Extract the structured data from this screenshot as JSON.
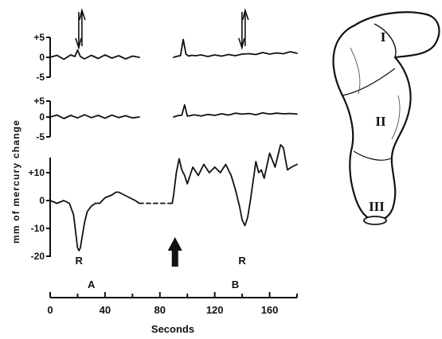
{
  "chart_data": [
    {
      "type": "line",
      "panel": "top trace",
      "yticks": [
        "+5",
        "0",
        "-5"
      ],
      "ylim": [
        -5,
        5
      ],
      "series": [
        {
          "segment": "A",
          "x": [
            0,
            5,
            10,
            15,
            18,
            20,
            22,
            25,
            30,
            35,
            40,
            45,
            50,
            55,
            60,
            65
          ],
          "y": [
            0,
            0.5,
            -0.5,
            0.6,
            0.2,
            1.8,
            0.2,
            -0.4,
            0.5,
            -0.3,
            0.6,
            -0.2,
            0.4,
            -0.4,
            0.3,
            0
          ]
        },
        {
          "segment": "B",
          "x": [
            90,
            93,
            95,
            97,
            99,
            101,
            103,
            106,
            110,
            115,
            120,
            125,
            130,
            135,
            140,
            145,
            150,
            155,
            160,
            165,
            170,
            175,
            180
          ],
          "y": [
            0,
            0.3,
            0.4,
            4.5,
            0.8,
            0.3,
            0.5,
            0.4,
            0.6,
            0.2,
            0.6,
            0.3,
            0.7,
            0.4,
            0.8,
            0.9,
            0.7,
            1.2,
            0.8,
            1.1,
            0.9,
            1.4,
            1.0
          ]
        }
      ],
      "arrows": [
        {
          "x": 22,
          "direction": "up-down"
        },
        {
          "x": 141,
          "direction": "up-down"
        }
      ]
    },
    {
      "type": "line",
      "panel": "middle trace",
      "yticks": [
        "+5",
        "0",
        "-5"
      ],
      "ylim": [
        -5,
        5
      ],
      "series": [
        {
          "segment": "A",
          "x": [
            0,
            5,
            10,
            15,
            20,
            25,
            30,
            35,
            40,
            45,
            50,
            55,
            60,
            65
          ],
          "y": [
            0,
            0.6,
            -0.5,
            0.5,
            -0.3,
            0.7,
            -0.2,
            0.5,
            -0.4,
            0.6,
            -0.2,
            0.4,
            -0.3,
            0
          ]
        },
        {
          "segment": "B",
          "x": [
            90,
            93,
            96,
            98,
            100,
            102,
            105,
            110,
            115,
            120,
            125,
            130,
            135,
            140,
            145,
            150,
            155,
            160,
            165,
            170,
            175,
            180
          ],
          "y": [
            0,
            0.4,
            0.6,
            3.8,
            0.3,
            0.4,
            0.7,
            0.3,
            0.8,
            0.5,
            1.0,
            0.6,
            1.2,
            0.9,
            1.1,
            0.7,
            1.3,
            0.9,
            1.2,
            1.0,
            1.1,
            0.9
          ]
        }
      ]
    },
    {
      "type": "line",
      "panel": "bottom trace",
      "ylabel": "mm of mercury change",
      "xlabel": "Seconds",
      "xlim": [
        0,
        180
      ],
      "ylim": [
        -20,
        20
      ],
      "yticks": [
        "+10",
        "0",
        "-10",
        "-20"
      ],
      "xticks": [
        "0",
        "40",
        "80",
        "120",
        "160"
      ],
      "series": [
        {
          "segment": "A",
          "x": [
            0,
            5,
            10,
            14,
            17,
            19,
            20,
            21,
            22,
            23,
            25,
            27,
            30,
            33,
            36,
            40,
            45,
            48,
            50,
            54,
            58,
            62,
            65
          ],
          "y": [
            0,
            -1,
            0,
            -1,
            -5,
            -13,
            -17,
            -18,
            -17,
            -14,
            -8,
            -4,
            -2,
            -1,
            -1,
            1,
            2,
            3,
            3,
            2,
            1,
            0,
            -1
          ]
        },
        {
          "segment": "gap",
          "style": "dashed",
          "x": [
            65,
            89
          ],
          "y": [
            -1,
            -1
          ]
        },
        {
          "segment": "B",
          "x": [
            89,
            90,
            92,
            94,
            96,
            98,
            100,
            104,
            108,
            112,
            116,
            120,
            124,
            128,
            132,
            135,
            138,
            140,
            142,
            144,
            146,
            150,
            152,
            154,
            156,
            160,
            164,
            168,
            170,
            173,
            176,
            180
          ],
          "y": [
            -1,
            2,
            10,
            15,
            11,
            9,
            6,
            12,
            9,
            13,
            10,
            12,
            10,
            13,
            9,
            4,
            -2,
            -7,
            -9,
            -6,
            0,
            14,
            10,
            11,
            8,
            17,
            12,
            20,
            19,
            11,
            12,
            13
          ]
        }
      ],
      "annotations": [
        "R",
        "R"
      ],
      "segment_labels": [
        "A",
        "B"
      ],
      "marker": {
        "type": "solid up arrow",
        "x": 91
      }
    }
  ],
  "illustration": {
    "region_labels": [
      "I",
      "II",
      "III"
    ]
  }
}
